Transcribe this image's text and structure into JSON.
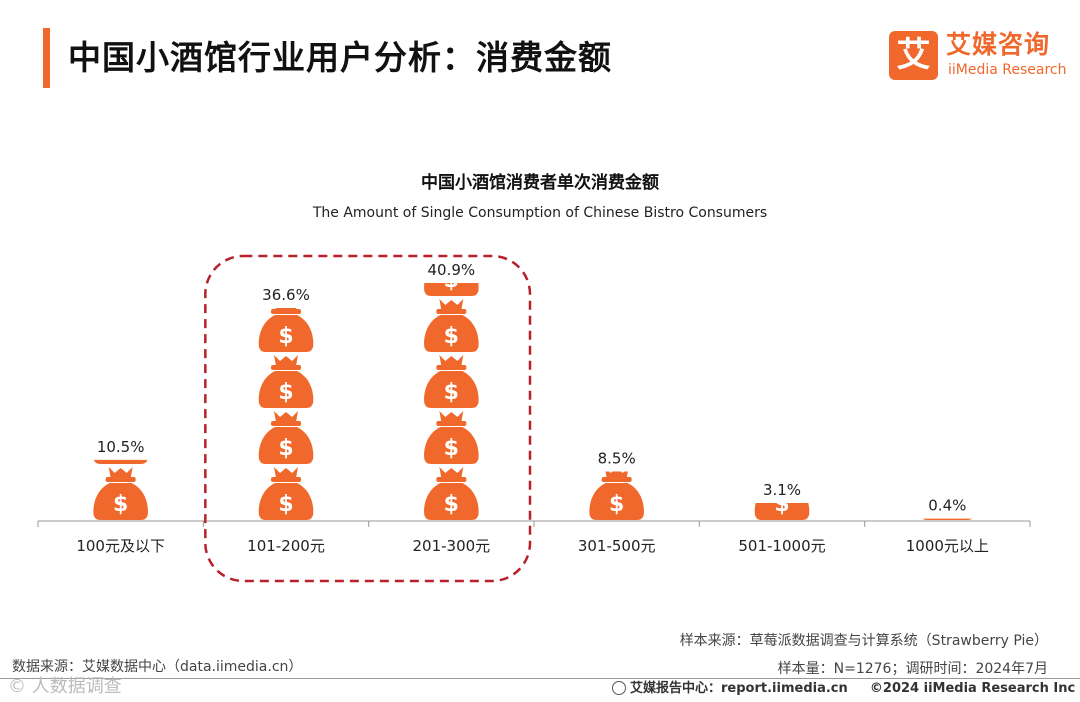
{
  "header": {
    "title": "中国小酒馆行业用户分析：消费金额",
    "logo_mark": "艾",
    "logo_cn": "艾媒咨询",
    "logo_en": "iiMedia Research"
  },
  "chart_data": {
    "type": "bar",
    "title": "中国小酒馆消费者单次消费金额",
    "subtitle": "The Amount of Single Consumption of Chinese Bistro Consumers",
    "categories": [
      "100元及以下",
      "101-200元",
      "201-300元",
      "301-500元",
      "501-1000元",
      "1000元以上"
    ],
    "values": [
      10.5,
      36.6,
      40.9,
      8.5,
      3.1,
      0.4
    ],
    "value_labels": [
      "10.5%",
      "36.6%",
      "40.9%",
      "8.5%",
      "3.1%",
      "0.4%"
    ],
    "unit": "%",
    "ylim": [
      0,
      45
    ],
    "highlighted_categories": [
      "101-200元",
      "201-300元"
    ],
    "highlight_color": "#b8202a",
    "bar_style": "stacked money-bag icons",
    "bar_color": "#f0682b",
    "grid": false
  },
  "footer": {
    "sample_source": "样本来源：草莓派数据调查与计算系统（Strawberry Pie）",
    "sample_info": "样本量：N=1276；调研时间：2024年7月",
    "data_source": "数据来源：艾媒数据中心（data.iimedia.cn）",
    "report_center_label": "艾媒报告中心：",
    "report_center_url": "report.iimedia.cn",
    "copyright": "©2024  iiMedia Research  Inc",
    "watermark": "©  人数据调查"
  },
  "colors": {
    "accent": "#f0682b",
    "highlight_box": "#b8202a",
    "axis": "#999999"
  }
}
